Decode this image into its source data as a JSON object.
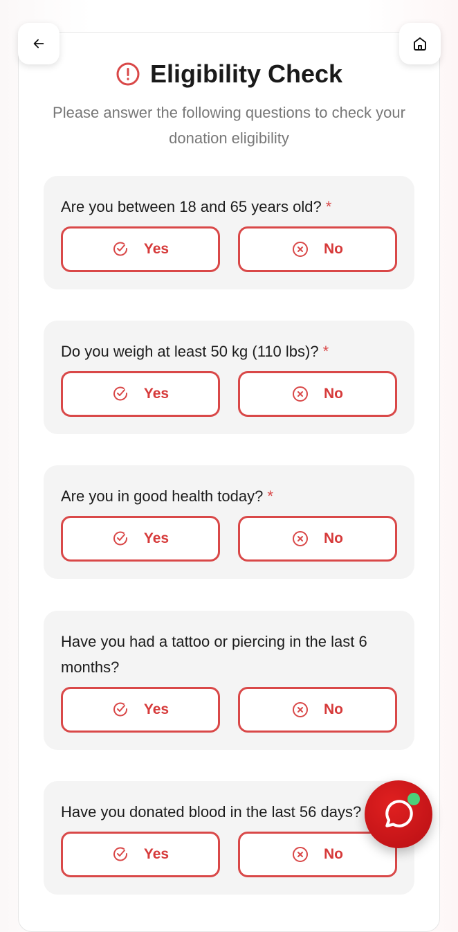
{
  "header": {
    "title": "Eligibility Check",
    "subtitle": "Please answer the following questions to check your donation eligibility"
  },
  "colors": {
    "accent": "#d94848",
    "card_bg": "#f4f4f4",
    "online": "#4cd07a"
  },
  "questions": [
    {
      "text": "Are you between 18 and 65 years old?",
      "required": "*",
      "yes": "Yes",
      "no": "No"
    },
    {
      "text": "Do you weigh at least 50 kg (110 lbs)?",
      "required": "*",
      "yes": "Yes",
      "no": "No"
    },
    {
      "text": "Are you in good health today?",
      "required": "*",
      "yes": "Yes",
      "no": "No"
    },
    {
      "text": "Have you had a tattoo or piercing in the last 6 months?",
      "yes": "Yes",
      "no": "No"
    },
    {
      "text": "Have you donated blood in the last 56 days?",
      "yes": "Yes",
      "no": "No"
    }
  ],
  "icons": {
    "back": "arrow-left-icon",
    "home": "home-icon",
    "title": "alert-circle-icon",
    "yes": "check-circle-icon",
    "no": "x-circle-icon",
    "chat": "chat-bubble-icon"
  }
}
